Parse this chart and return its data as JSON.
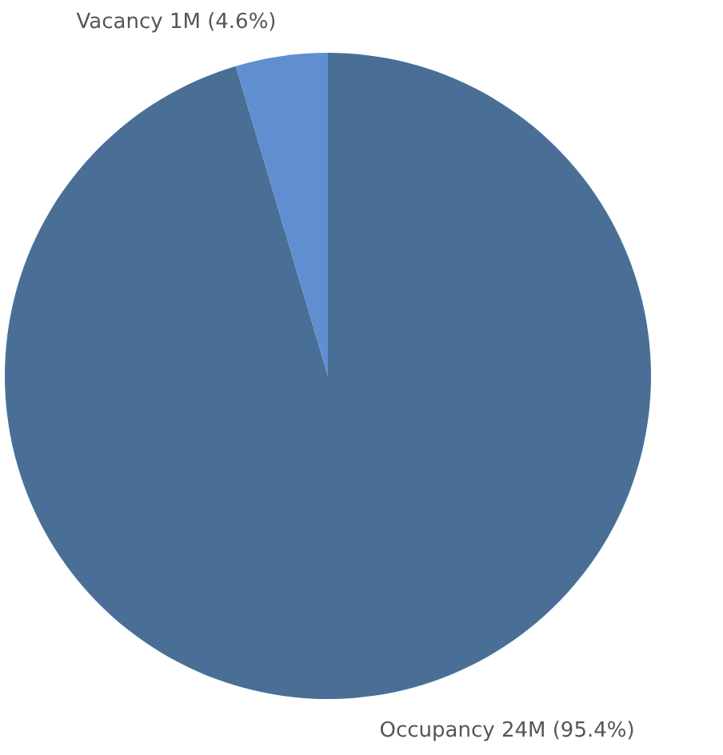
{
  "chart_data": {
    "type": "pie",
    "categories": [
      "Occupancy",
      "Vacancy"
    ],
    "values": [
      95.4,
      4.6
    ],
    "value_labels": [
      "24M (95.4%)",
      "1M (4.6%)"
    ],
    "colors": [
      "#4a6f96",
      "#5f8fd0"
    ]
  }
}
